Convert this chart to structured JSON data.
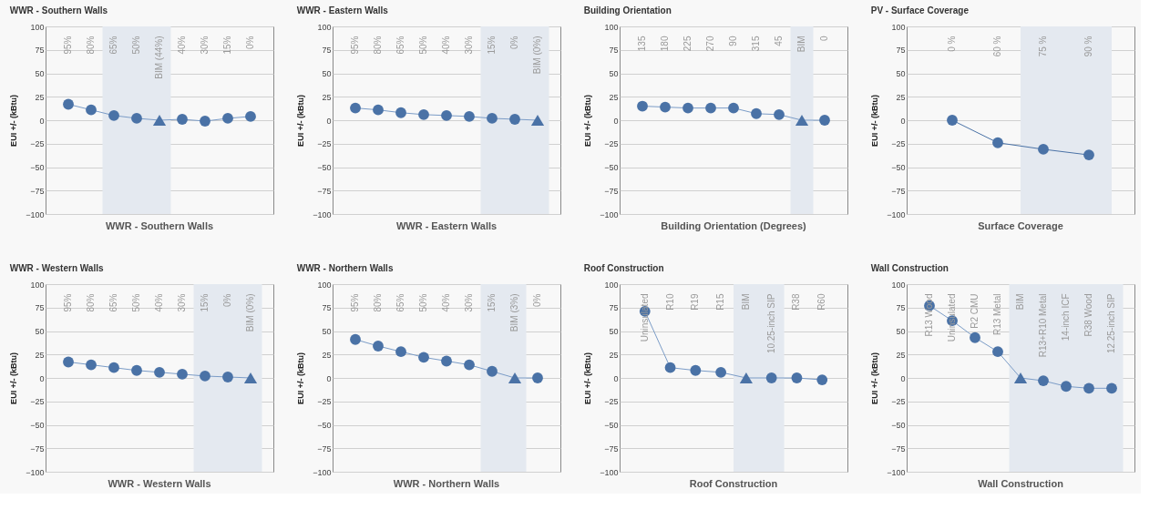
{
  "chart_data": [
    {
      "type": "line",
      "title": "WWR - Southern Walls",
      "xlabel": "WWR - Southern Walls",
      "ylabel": "EUI +/- (kBtu)",
      "categories": [
        "95%",
        "80%",
        "65%",
        "50%",
        "BIM (44%)",
        "40%",
        "30%",
        "15%",
        "0%"
      ],
      "ylim": [
        -100,
        100
      ],
      "yticks": [
        -100,
        -75,
        -50,
        -25,
        0,
        25,
        50,
        75,
        100
      ],
      "grid": "y",
      "bands": [
        {
          "axis": "x",
          "from": "65%",
          "to": "BIM (44%)",
          "color": "#e4e9f0"
        }
      ],
      "series": [
        {
          "type": "line",
          "marker": "none",
          "color": "#7b9cc7",
          "values": [
            17,
            11,
            5,
            2,
            0,
            1,
            -1,
            2,
            4
          ]
        },
        {
          "type": "scatter",
          "marker": "circle",
          "color": "#4a72a6",
          "values": [
            17,
            11,
            5,
            2,
            null,
            1,
            -1,
            2,
            4
          ]
        },
        {
          "type": "scatter",
          "marker": "triangle",
          "color": "#4a72a6",
          "values": [
            null,
            null,
            null,
            null,
            0,
            null,
            null,
            null,
            null
          ]
        }
      ]
    },
    {
      "type": "line",
      "title": "WWR - Eastern Walls",
      "xlabel": "WWR - Eastern Walls",
      "ylabel": "EUI +/- (kBtu)",
      "categories": [
        "95%",
        "80%",
        "65%",
        "50%",
        "40%",
        "30%",
        "15%",
        "0%",
        "BIM (0%)"
      ],
      "ylim": [
        -100,
        100
      ],
      "yticks": [
        -100,
        -75,
        -50,
        -25,
        0,
        25,
        50,
        75,
        100
      ],
      "grid": "y",
      "bands": [
        {
          "axis": "x",
          "from": "15%",
          "to": "BIM (0%)",
          "color": "#e4e9f0"
        }
      ],
      "series": [
        {
          "type": "line",
          "marker": "none",
          "color": "#7b9cc7",
          "values": [
            13,
            11,
            8,
            6,
            5,
            4,
            2,
            1,
            0
          ]
        },
        {
          "type": "scatter",
          "marker": "circle",
          "color": "#4a72a6",
          "values": [
            13,
            11,
            8,
            6,
            5,
            4,
            2,
            1,
            null
          ]
        },
        {
          "type": "scatter",
          "marker": "triangle",
          "color": "#4a72a6",
          "values": [
            null,
            null,
            null,
            null,
            null,
            null,
            null,
            null,
            0
          ]
        }
      ]
    },
    {
      "type": "line",
      "title": "Building Orientation",
      "xlabel": "Building Orientation (Degrees)",
      "ylabel": "EUI +/- (kBtu)",
      "categories": [
        "135",
        "180",
        "225",
        "270",
        "90",
        "315",
        "45",
        "BIM",
        "0"
      ],
      "ylim": [
        -100,
        100
      ],
      "yticks": [
        -100,
        -75,
        -50,
        -25,
        0,
        25,
        50,
        75,
        100
      ],
      "grid": "y",
      "bands": [
        {
          "axis": "x",
          "from": "BIM",
          "to": "BIM",
          "color": "#e4e9f0"
        }
      ],
      "series": [
        {
          "type": "line",
          "marker": "none",
          "color": "#7b9cc7",
          "values": [
            15,
            14,
            13,
            13,
            13,
            7,
            6,
            0,
            0
          ]
        },
        {
          "type": "scatter",
          "marker": "circle",
          "color": "#4a72a6",
          "values": [
            15,
            14,
            13,
            13,
            13,
            7,
            6,
            null,
            0
          ]
        },
        {
          "type": "scatter",
          "marker": "triangle",
          "color": "#4a72a6",
          "values": [
            null,
            null,
            null,
            null,
            null,
            null,
            null,
            0,
            null
          ]
        }
      ]
    },
    {
      "type": "line",
      "title": "PV - Surface Coverage",
      "xlabel": "Surface Coverage",
      "ylabel": "EUI +/- (kBtu)",
      "categories": [
        "0 %",
        "60 %",
        "75 %",
        "90 %"
      ],
      "ylim": [
        -100,
        100
      ],
      "yticks": [
        -100,
        -75,
        -50,
        -25,
        0,
        25,
        50,
        75,
        100
      ],
      "grid": "y",
      "bands": [
        {
          "axis": "x",
          "from": "75 %",
          "to": "90 %",
          "color": "#e4e9f0"
        }
      ],
      "series": [
        {
          "type": "line",
          "marker": "circle",
          "color": "#4a72a6",
          "values": [
            0,
            -24,
            -31,
            -37
          ]
        }
      ]
    },
    {
      "type": "line",
      "title": "WWR - Western Walls",
      "xlabel": "WWR - Western Walls",
      "ylabel": "EUI +/- (kBtu)",
      "categories": [
        "95%",
        "80%",
        "65%",
        "50%",
        "40%",
        "30%",
        "15%",
        "0%",
        "BIM (0%)"
      ],
      "ylim": [
        -100,
        100
      ],
      "yticks": [
        -100,
        -75,
        -50,
        -25,
        0,
        25,
        50,
        75,
        100
      ],
      "grid": "y",
      "bands": [
        {
          "axis": "x",
          "from": "15%",
          "to": "BIM (0%)",
          "color": "#e4e9f0"
        }
      ],
      "series": [
        {
          "type": "line",
          "marker": "none",
          "color": "#7b9cc7",
          "values": [
            17,
            14,
            11,
            8,
            6,
            4,
            2,
            1,
            0
          ]
        },
        {
          "type": "scatter",
          "marker": "circle",
          "color": "#4a72a6",
          "values": [
            17,
            14,
            11,
            8,
            6,
            4,
            2,
            1,
            null
          ]
        },
        {
          "type": "scatter",
          "marker": "triangle",
          "color": "#4a72a6",
          "values": [
            null,
            null,
            null,
            null,
            null,
            null,
            null,
            null,
            0
          ]
        }
      ]
    },
    {
      "type": "line",
      "title": "WWR - Northern Walls",
      "xlabel": "WWR - Northern Walls",
      "ylabel": "EUI +/- (kBtu)",
      "categories": [
        "95%",
        "80%",
        "65%",
        "50%",
        "40%",
        "30%",
        "15%",
        "BIM (3%)",
        "0%"
      ],
      "ylim": [
        -100,
        100
      ],
      "yticks": [
        -100,
        -75,
        -50,
        -25,
        0,
        25,
        50,
        75,
        100
      ],
      "grid": "y",
      "bands": [
        {
          "axis": "x",
          "from": "15%",
          "to": "BIM (3%)",
          "color": "#e4e9f0"
        }
      ],
      "series": [
        {
          "type": "line",
          "marker": "none",
          "color": "#7b9cc7",
          "values": [
            41,
            34,
            28,
            22,
            18,
            14,
            7,
            0,
            0
          ]
        },
        {
          "type": "scatter",
          "marker": "circle",
          "color": "#4a72a6",
          "values": [
            41,
            34,
            28,
            22,
            18,
            14,
            7,
            null,
            0
          ]
        },
        {
          "type": "scatter",
          "marker": "triangle",
          "color": "#4a72a6",
          "values": [
            null,
            null,
            null,
            null,
            null,
            null,
            null,
            0,
            null
          ]
        }
      ]
    },
    {
      "type": "line",
      "title": "Roof Construction",
      "xlabel": "Roof Construction",
      "ylabel": "EUI +/- (kBtu)",
      "categories": [
        "Uninsulated",
        "R10",
        "R19",
        "R15",
        "BIM",
        "10.25-inch SIP",
        "R38",
        "R60"
      ],
      "ylim": [
        -100,
        100
      ],
      "yticks": [
        -100,
        -75,
        -50,
        -25,
        0,
        25,
        50,
        75,
        100
      ],
      "grid": "y",
      "bands": [
        {
          "axis": "x",
          "from": "BIM",
          "to": "10.25-inch SIP",
          "color": "#e4e9f0"
        }
      ],
      "series": [
        {
          "type": "line",
          "marker": "none",
          "color": "#7b9cc7",
          "values": [
            71,
            11,
            8,
            6,
            0,
            0,
            0,
            -2
          ]
        },
        {
          "type": "scatter",
          "marker": "circle",
          "color": "#4a72a6",
          "values": [
            71,
            11,
            8,
            6,
            null,
            0,
            0,
            -2
          ]
        },
        {
          "type": "scatter",
          "marker": "triangle",
          "color": "#4a72a6",
          "values": [
            null,
            null,
            null,
            null,
            0,
            null,
            null,
            null
          ]
        }
      ]
    },
    {
      "type": "line",
      "title": "Wall Construction",
      "xlabel": "Wall Construction",
      "ylabel": "EUI +/- (kBtu)",
      "categories": [
        "R13 Wood",
        "Uninsulated",
        "R2 CMU",
        "R13 Metal",
        "BIM",
        "R13+R10 Metal",
        "14-inch ICF",
        "R38 Wood",
        "12.25-inch SIP"
      ],
      "ylim": [
        -100,
        100
      ],
      "yticks": [
        -100,
        -75,
        -50,
        -25,
        0,
        25,
        50,
        75,
        100
      ],
      "grid": "y",
      "bands": [
        {
          "axis": "x",
          "from": "BIM",
          "to": "12.25-inch SIP",
          "color": "#e4e9f0"
        }
      ],
      "series": [
        {
          "type": "line",
          "marker": "none",
          "color": "#7b9cc7",
          "values": [
            77,
            61,
            43,
            28,
            0,
            -3,
            -9,
            -11,
            -11
          ]
        },
        {
          "type": "scatter",
          "marker": "circle",
          "color": "#4a72a6",
          "values": [
            77,
            61,
            43,
            28,
            null,
            -3,
            -9,
            -11,
            -11
          ]
        },
        {
          "type": "scatter",
          "marker": "triangle",
          "color": "#4a72a6",
          "values": [
            null,
            null,
            null,
            null,
            0,
            null,
            null,
            null,
            null
          ]
        }
      ]
    }
  ]
}
